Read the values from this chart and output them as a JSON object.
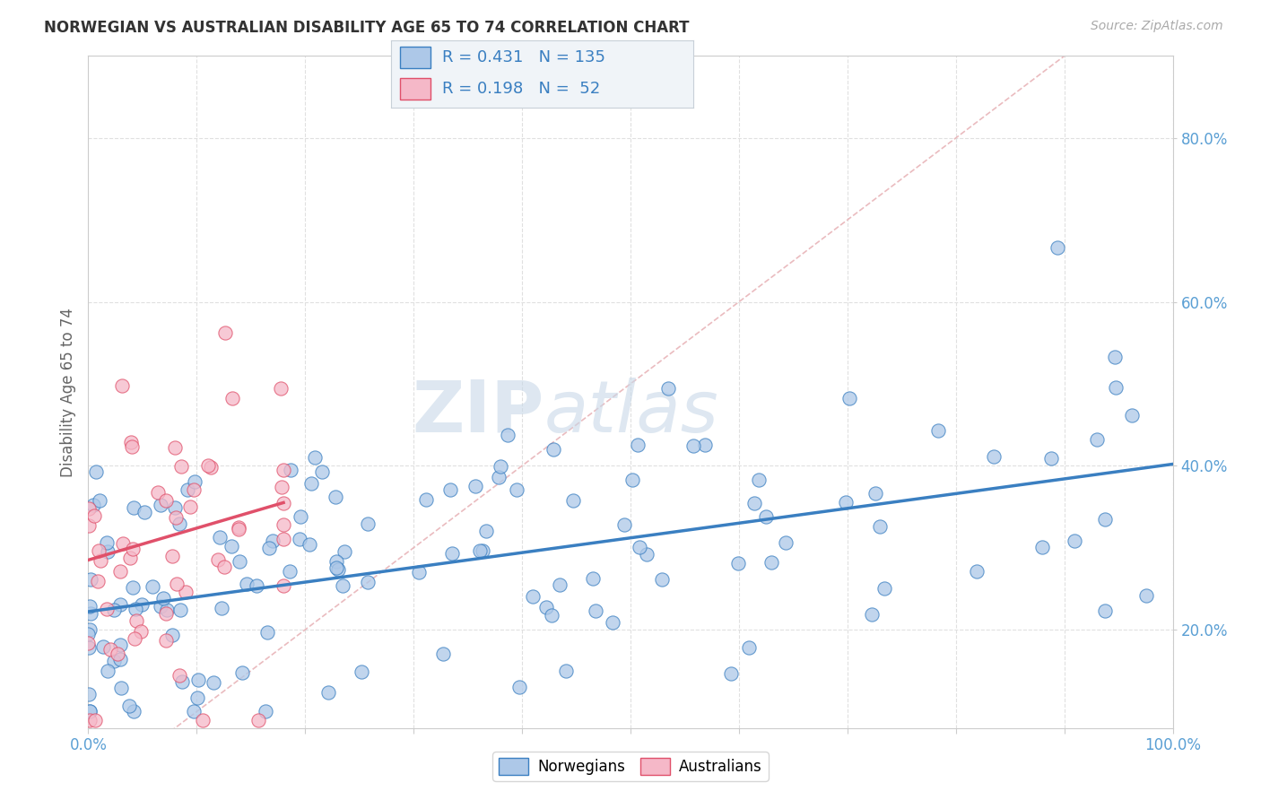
{
  "title": "NORWEGIAN VS AUSTRALIAN DISABILITY AGE 65 TO 74 CORRELATION CHART",
  "source_text": "Source: ZipAtlas.com",
  "ylabel": "Disability Age 65 to 74",
  "xlim": [
    0.0,
    1.0
  ],
  "ylim": [
    0.08,
    0.9
  ],
  "x_tick_labels": [
    "0.0%",
    "100.0%"
  ],
  "x_ticks": [
    0.0,
    1.0
  ],
  "y_tick_labels": [
    "20.0%",
    "40.0%",
    "60.0%",
    "80.0%"
  ],
  "y_ticks": [
    0.2,
    0.4,
    0.6,
    0.8
  ],
  "norwegian_color": "#adc8e8",
  "australian_color": "#f5b8c8",
  "norwegian_line_color": "#3a7fc1",
  "australian_line_color": "#e0506a",
  "diagonal_color": "#e8b4b8",
  "watermark_color": "#c8d8e8",
  "R_norwegian": 0.431,
  "N_norwegian": 135,
  "R_australian": 0.198,
  "N_australian": 52,
  "background_color": "#ffffff",
  "grid_color": "#e0e0e0",
  "tick_color": "#5a9fd4",
  "nor_line_x0": 0.0,
  "nor_line_y0": 0.222,
  "nor_line_x1": 1.0,
  "nor_line_y1": 0.402,
  "aus_line_x0": 0.0,
  "aus_line_y0": 0.285,
  "aus_line_x1": 0.18,
  "aus_line_y1": 0.355
}
